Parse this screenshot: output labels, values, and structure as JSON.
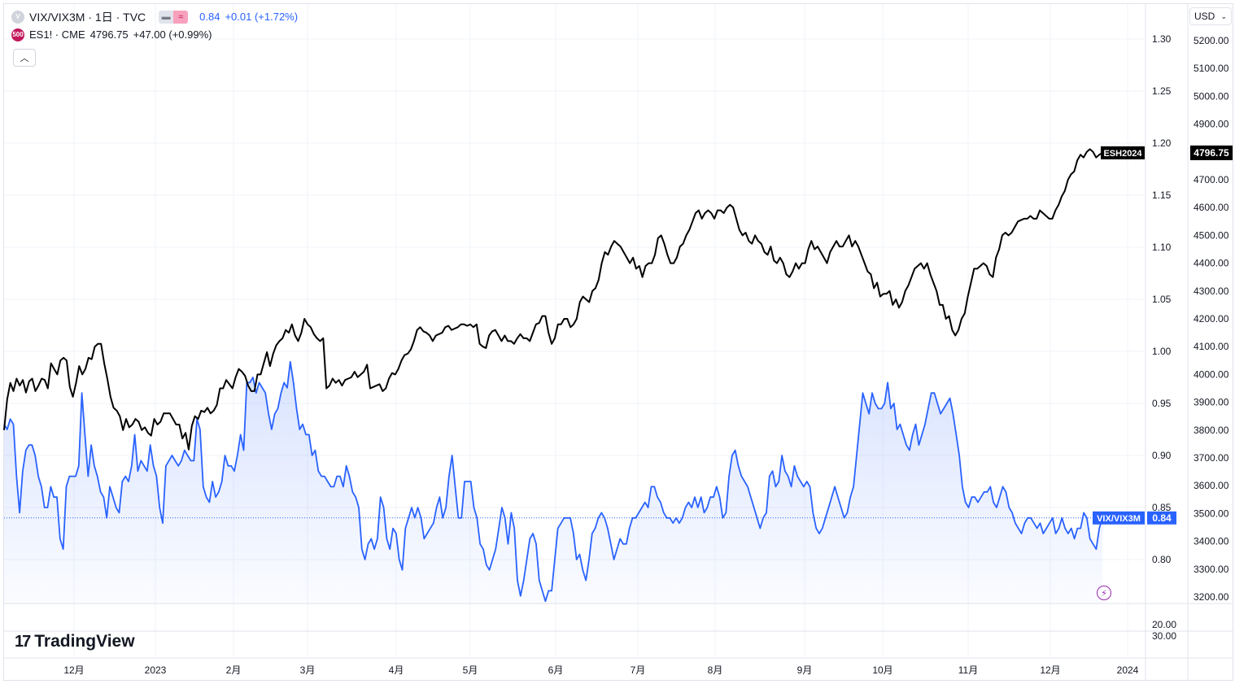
{
  "legend": {
    "main_symbol": "VIX/VIX3M · 1日 · TVC",
    "main_value": "0.84",
    "main_change": "+0.01 (+1.72%)",
    "compare_badge": "500",
    "compare_symbol": "ES1! · CME",
    "compare_value": "4796.75",
    "compare_change": "+47.00 (+0.99%)"
  },
  "currency": {
    "label": "USD"
  },
  "branding": {
    "name": "TradingView"
  },
  "colors": {
    "vix_line": "#2962ff",
    "es_line": "#000000",
    "grid": "#f0f3fa"
  },
  "chart_data": {
    "type": "line",
    "x_ticks": [
      "12月",
      "2023",
      "2月",
      "3月",
      "4月",
      "5月",
      "6月",
      "7月",
      "8月",
      "9月",
      "10月",
      "11月",
      "12月",
      "2024"
    ],
    "right_axis": {
      "ticks": [
        "1.30",
        "1.25",
        "1.20",
        "1.15",
        "1.10",
        "1.05",
        "1.00",
        "0.95",
        "0.90",
        "0.85",
        "0.80"
      ],
      "range": [
        0.76,
        1.32
      ]
    },
    "far_right_axis": {
      "ticks": [
        "5200.00",
        "5100.00",
        "5000.00",
        "4900.00",
        "4800.00",
        "4700.00",
        "4600.00",
        "4500.00",
        "4400.00",
        "4300.00",
        "4200.00",
        "4100.00",
        "4000.00",
        "3900.00",
        "3800.00",
        "3700.00",
        "3600.00",
        "3500.00",
        "3400.00",
        "3300.00",
        "3200.00"
      ],
      "range": [
        3150,
        5250
      ]
    },
    "lower_pane": {
      "ticks": [
        "20.00",
        "30.00"
      ]
    },
    "series": [
      {
        "name": "ESH2024",
        "last_label": "4796.75",
        "values": [
          3800,
          3910,
          3970,
          3940,
          3985,
          3960,
          3980,
          3935,
          3975,
          3985,
          3940,
          3960,
          3985,
          3980,
          3950,
          4040,
          4020,
          4000,
          4050,
          4060,
          4050,
          3955,
          3920,
          3970,
          4030,
          4000,
          4020,
          4060,
          4055,
          4100,
          4110,
          4110,
          4040,
          3985,
          3920,
          3880,
          3870,
          3850,
          3800,
          3840,
          3810,
          3820,
          3840,
          3830,
          3800,
          3810,
          3790,
          3780,
          3840,
          3820,
          3830,
          3860,
          3860,
          3860,
          3840,
          3820,
          3820,
          3770,
          3790,
          3730,
          3815,
          3850,
          3840,
          3870,
          3865,
          3880,
          3860,
          3870,
          3890,
          3950,
          3950,
          3980,
          3965,
          3950,
          3990,
          4020,
          4010,
          3995,
          3960,
          3940,
          3940,
          4000,
          4000,
          4040,
          4080,
          4030,
          4075,
          4105,
          4120,
          4130,
          4160,
          4150,
          4180,
          4140,
          4120,
          4150,
          4200,
          4180,
          4170,
          4145,
          4130,
          4120,
          4130,
          3950,
          3960,
          3985,
          3970,
          3980,
          3960,
          3980,
          3985,
          3990,
          4010,
          3990,
          4000,
          4010,
          4035,
          3950,
          3955,
          3960,
          3965,
          3940,
          3950,
          3985,
          4005,
          4000,
          4020,
          4050,
          4070,
          4075,
          4090,
          4120,
          4160,
          4170,
          4155,
          4150,
          4140,
          4120,
          4140,
          4145,
          4150,
          4170,
          4175,
          4160,
          4165,
          4170,
          4180,
          4180,
          4175,
          4180,
          4170,
          4180,
          4110,
          4100,
          4095,
          4140,
          4155,
          4160,
          4140,
          4120,
          4140,
          4120,
          4120,
          4110,
          4130,
          4145,
          4130,
          4130,
          4120,
          4150,
          4180,
          4185,
          4210,
          4210,
          4150,
          4110,
          4130,
          4180,
          4180,
          4200,
          4200,
          4170,
          4180,
          4200,
          4260,
          4280,
          4270,
          4260,
          4300,
          4310,
          4340,
          4400,
          4440,
          4430,
          4460,
          4480,
          4470,
          4460,
          4440,
          4420,
          4400,
          4420,
          4380,
          4390,
          4350,
          4390,
          4400,
          4400,
          4430,
          4490,
          4500,
          4470,
          4430,
          4400,
          4400,
          4420,
          4460,
          4470,
          4500,
          4520,
          4550,
          4580,
          4590,
          4560,
          4580,
          4590,
          4580,
          4560,
          4590,
          4590,
          4580,
          4600,
          4610,
          4600,
          4560,
          4520,
          4500,
          4510,
          4480,
          4470,
          4500,
          4480,
          4470,
          4440,
          4430,
          4460,
          4410,
          4400,
          4420,
          4400,
          4360,
          4350,
          4370,
          4400,
          4380,
          4400,
          4400,
          4450,
          4480,
          4450,
          4460,
          4440,
          4420,
          4400,
          4440,
          4460,
          4480,
          4460,
          4460,
          4480,
          4500,
          4460,
          4480,
          4460,
          4430,
          4400,
          4370,
          4360,
          4310,
          4330,
          4280,
          4290,
          4290,
          4300,
          4250,
          4270,
          4240,
          4260,
          4300,
          4320,
          4350,
          4380,
          4390,
          4400,
          4380,
          4400,
          4360,
          4330,
          4300,
          4250,
          4250,
          4200,
          4210,
          4160,
          4140,
          4160,
          4200,
          4220,
          4280,
          4330,
          4380,
          4380,
          4390,
          4400,
          4390,
          4360,
          4350,
          4420,
          4450,
          4500,
          4510,
          4500,
          4510,
          4530,
          4550,
          4555,
          4560,
          4560,
          4570,
          4560,
          4560,
          4590,
          4580,
          4570,
          4560,
          4560,
          4590,
          4610,
          4640,
          4660,
          4700,
          4720,
          4730,
          4770,
          4790,
          4780,
          4800,
          4810,
          4800,
          4780,
          4790,
          4796.75
        ]
      },
      {
        "name": "VIX/VIX3M",
        "last_label": "0.84",
        "values": [
          0.93,
          0.925,
          0.935,
          0.93,
          0.88,
          0.845,
          0.885,
          0.905,
          0.91,
          0.91,
          0.9,
          0.88,
          0.87,
          0.85,
          0.85,
          0.87,
          0.86,
          0.86,
          0.82,
          0.81,
          0.87,
          0.88,
          0.88,
          0.88,
          0.89,
          0.96,
          0.92,
          0.88,
          0.91,
          0.89,
          0.88,
          0.865,
          0.86,
          0.84,
          0.87,
          0.86,
          0.85,
          0.845,
          0.875,
          0.88,
          0.875,
          0.89,
          0.92,
          0.885,
          0.895,
          0.89,
          0.885,
          0.91,
          0.89,
          0.88,
          0.85,
          0.835,
          0.89,
          0.895,
          0.9,
          0.895,
          0.89,
          0.895,
          0.905,
          0.9,
          0.895,
          0.895,
          0.935,
          0.925,
          0.87,
          0.86,
          0.855,
          0.875,
          0.86,
          0.865,
          0.875,
          0.9,
          0.89,
          0.89,
          0.885,
          0.9,
          0.92,
          0.905,
          0.97,
          0.97,
          0.975,
          0.96,
          0.97,
          0.965,
          0.96,
          0.94,
          0.925,
          0.94,
          0.945,
          0.96,
          0.97,
          0.965,
          0.99,
          0.97,
          0.945,
          0.925,
          0.93,
          0.92,
          0.92,
          0.9,
          0.905,
          0.885,
          0.88,
          0.88,
          0.875,
          0.87,
          0.87,
          0.88,
          0.88,
          0.87,
          0.89,
          0.88,
          0.865,
          0.86,
          0.85,
          0.81,
          0.8,
          0.815,
          0.82,
          0.81,
          0.82,
          0.86,
          0.85,
          0.82,
          0.81,
          0.83,
          0.825,
          0.8,
          0.79,
          0.83,
          0.84,
          0.85,
          0.84,
          0.85,
          0.84,
          0.82,
          0.825,
          0.83,
          0.835,
          0.85,
          0.86,
          0.84,
          0.85,
          0.88,
          0.9,
          0.87,
          0.84,
          0.84,
          0.875,
          0.875,
          0.875,
          0.85,
          0.84,
          0.815,
          0.81,
          0.795,
          0.79,
          0.8,
          0.81,
          0.83,
          0.85,
          0.84,
          0.815,
          0.845,
          0.83,
          0.78,
          0.765,
          0.78,
          0.8,
          0.82,
          0.825,
          0.815,
          0.78,
          0.77,
          0.76,
          0.77,
          0.77,
          0.8,
          0.83,
          0.835,
          0.84,
          0.84,
          0.84,
          0.825,
          0.8,
          0.805,
          0.79,
          0.78,
          0.8,
          0.825,
          0.83,
          0.84,
          0.845,
          0.84,
          0.83,
          0.815,
          0.8,
          0.81,
          0.82,
          0.815,
          0.815,
          0.83,
          0.84,
          0.84,
          0.845,
          0.85,
          0.855,
          0.85,
          0.87,
          0.87,
          0.86,
          0.855,
          0.845,
          0.84,
          0.84,
          0.835,
          0.84,
          0.835,
          0.84,
          0.85,
          0.855,
          0.85,
          0.86,
          0.85,
          0.86,
          0.845,
          0.85,
          0.86,
          0.86,
          0.87,
          0.86,
          0.84,
          0.845,
          0.88,
          0.9,
          0.905,
          0.89,
          0.88,
          0.875,
          0.87,
          0.86,
          0.85,
          0.84,
          0.83,
          0.84,
          0.845,
          0.88,
          0.885,
          0.87,
          0.875,
          0.9,
          0.885,
          0.88,
          0.87,
          0.89,
          0.88,
          0.875,
          0.87,
          0.875,
          0.87,
          0.845,
          0.83,
          0.825,
          0.83,
          0.84,
          0.85,
          0.86,
          0.87,
          0.86,
          0.85,
          0.84,
          0.845,
          0.86,
          0.87,
          0.9,
          0.93,
          0.96,
          0.95,
          0.94,
          0.96,
          0.95,
          0.945,
          0.945,
          0.95,
          0.97,
          0.945,
          0.95,
          0.925,
          0.93,
          0.92,
          0.91,
          0.905,
          0.92,
          0.93,
          0.91,
          0.92,
          0.93,
          0.945,
          0.96,
          0.96,
          0.95,
          0.94,
          0.945,
          0.95,
          0.955,
          0.94,
          0.92,
          0.9,
          0.87,
          0.855,
          0.85,
          0.86,
          0.86,
          0.855,
          0.86,
          0.865,
          0.865,
          0.87,
          0.855,
          0.85,
          0.86,
          0.87,
          0.865,
          0.85,
          0.845,
          0.835,
          0.83,
          0.825,
          0.835,
          0.84,
          0.84,
          0.835,
          0.83,
          0.835,
          0.825,
          0.83,
          0.835,
          0.84,
          0.825,
          0.83,
          0.84,
          0.83,
          0.825,
          0.83,
          0.82,
          0.83,
          0.83,
          0.845,
          0.84,
          0.82,
          0.815,
          0.81,
          0.83,
          0.84
        ]
      }
    ]
  }
}
